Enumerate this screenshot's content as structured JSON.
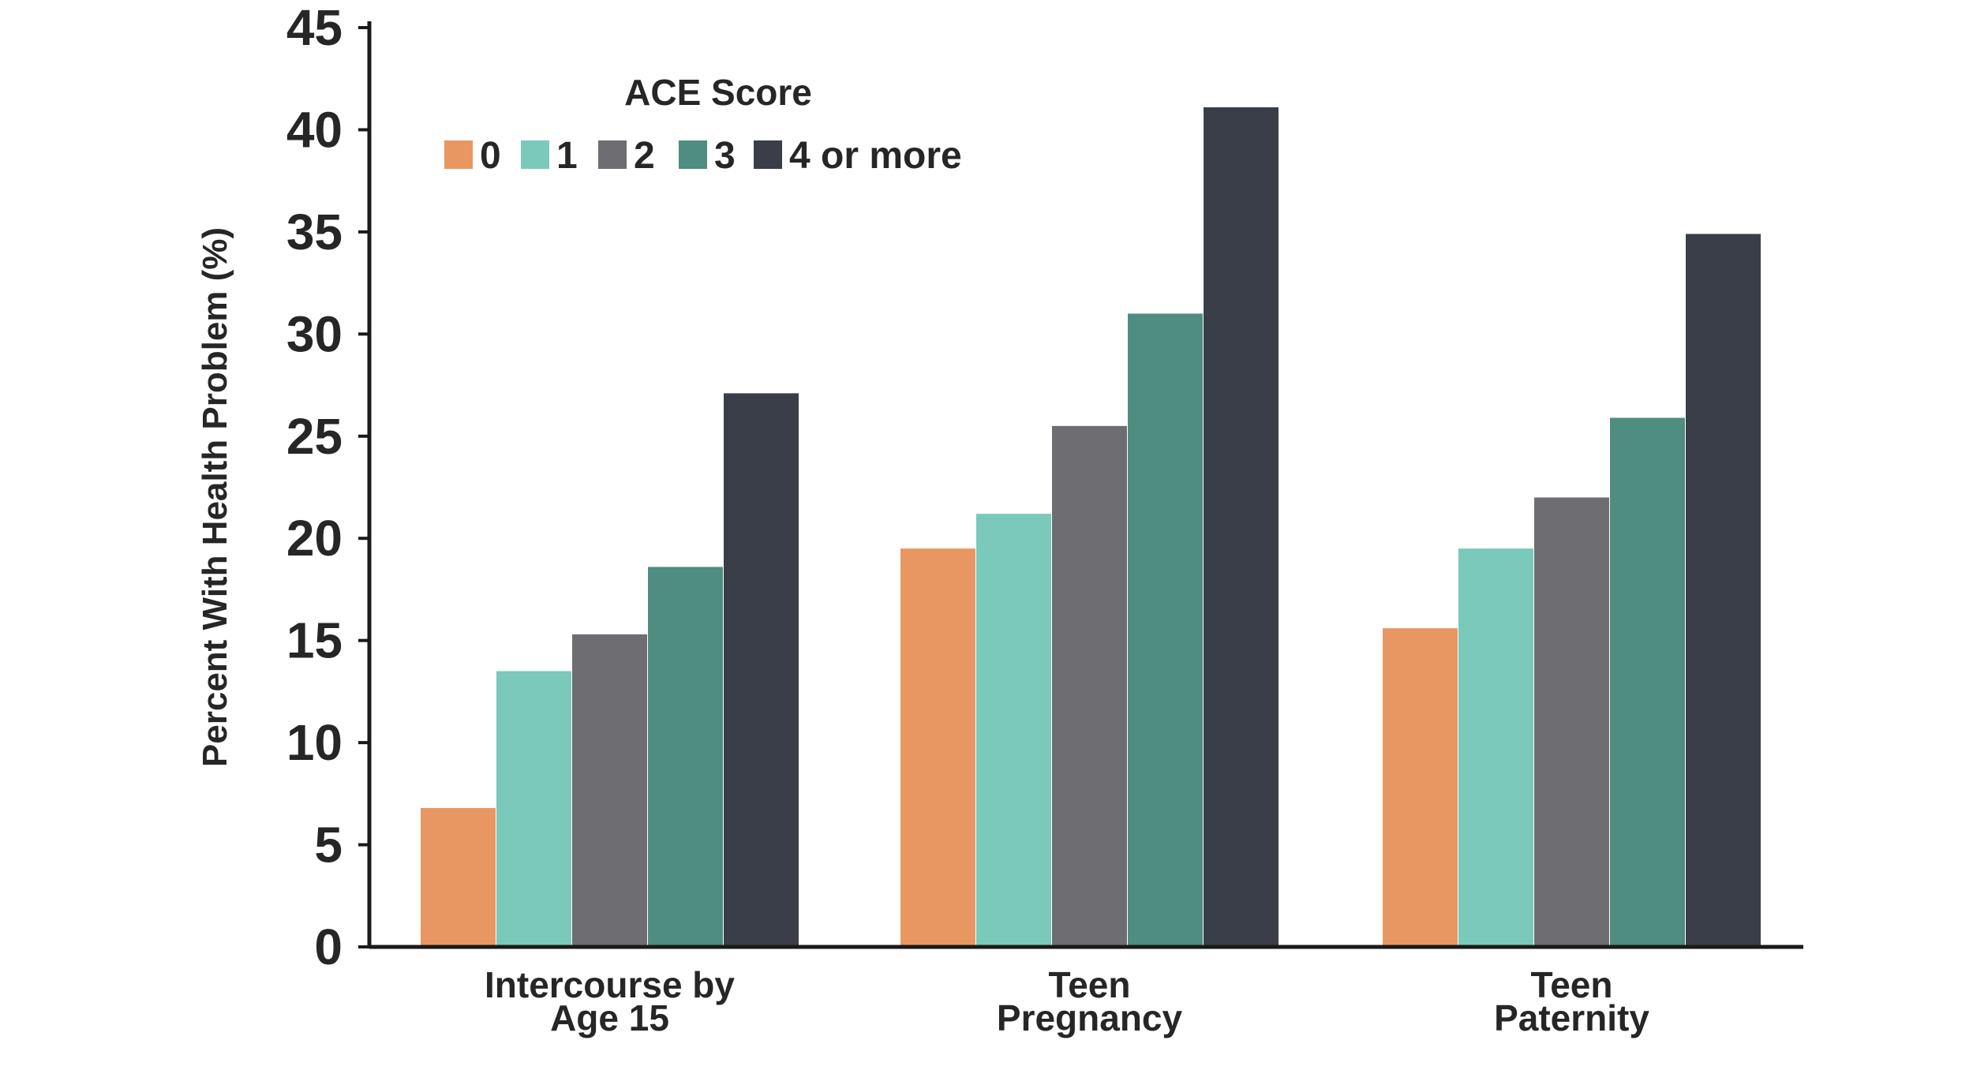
{
  "chart_data": {
    "type": "bar",
    "title": "",
    "xlabel": "",
    "ylabel": "Percent With Health Problem (%)",
    "ylim": [
      0,
      45
    ],
    "yticks": [
      0,
      5,
      10,
      15,
      20,
      25,
      30,
      35,
      40,
      45
    ],
    "grid": false,
    "legend_position": "top-left",
    "legend_title": "ACE Score",
    "categories": [
      [
        "Intercourse by",
        "Age 15"
      ],
      [
        "Teen",
        "Pregnancy"
      ],
      [
        "Teen",
        "Paternity"
      ]
    ],
    "series": [
      {
        "name": "0",
        "color": "#E89763",
        "values": [
          6.8,
          19.5,
          15.6
        ]
      },
      {
        "name": "1",
        "color": "#7AC9BB",
        "values": [
          13.5,
          21.2,
          19.5
        ]
      },
      {
        "name": "2",
        "color": "#6E6E72",
        "values": [
          15.3,
          25.5,
          22.0
        ]
      },
      {
        "name": "3",
        "color": "#4E8D80",
        "values": [
          18.6,
          31.0,
          25.9
        ]
      },
      {
        "name": "4 or more",
        "color": "#3A3E48",
        "values": [
          27.1,
          41.1,
          34.9
        ]
      }
    ]
  }
}
